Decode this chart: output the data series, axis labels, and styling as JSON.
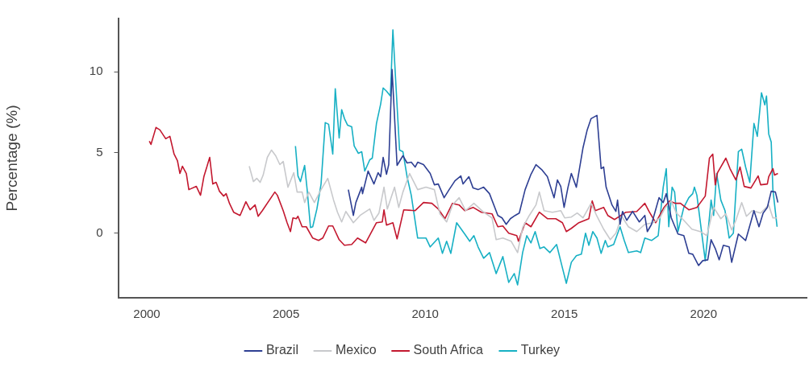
{
  "chart_data": {
    "type": "line",
    "ylabel": "Percentage (%)",
    "xlim": [
      1999,
      2023.7
    ],
    "ylim": [
      -4,
      13.3
    ],
    "xticks": [
      2000,
      2005,
      2010,
      2015,
      2020
    ],
    "yticks": [
      0,
      5,
      10
    ],
    "grid": false,
    "legend": "bottom",
    "series": [
      {
        "name": "Brazil",
        "color": "#2e3f93",
        "x": [
          2007.24,
          2007.42,
          2007.51,
          2007.72,
          2007.75,
          2007.95,
          2008.16,
          2008.31,
          2008.4,
          2008.49,
          2008.61,
          2008.69,
          2008.81,
          2008.99,
          2009.2,
          2009.35,
          2009.5,
          2009.64,
          2009.73,
          2009.94,
          2010.18,
          2010.33,
          2010.47,
          2010.68,
          2010.86,
          2011.07,
          2011.28,
          2011.36,
          2011.57,
          2011.72,
          2011.9,
          2012.1,
          2012.31,
          2012.61,
          2012.76,
          2012.91,
          2013.06,
          2013.23,
          2013.38,
          2013.59,
          2013.8,
          2013.98,
          2014.18,
          2014.39,
          2014.48,
          2014.63,
          2014.75,
          2014.87,
          2014.99,
          2015.13,
          2015.25,
          2015.43,
          2015.67,
          2015.82,
          2015.96,
          2016.17,
          2016.32,
          2016.41,
          2016.5,
          2016.71,
          2016.85,
          2016.91,
          2017.0,
          2017.09,
          2017.24,
          2017.45,
          2017.69,
          2017.89,
          2017.98,
          2018.13,
          2018.4,
          2018.55,
          2018.66,
          2018.84,
          2019.08,
          2019.29,
          2019.47,
          2019.61,
          2019.82,
          2019.97,
          2020.15,
          2020.27,
          2020.42,
          2020.56,
          2020.71,
          2020.92,
          2021.01,
          2021.25,
          2021.51,
          2021.69,
          2021.81,
          2021.99,
          2022.14,
          2022.29,
          2022.43,
          2022.58,
          2022.67
        ],
        "values": [
          2.7,
          1.1,
          1.9,
          2.85,
          2.45,
          3.85,
          3.05,
          3.75,
          3.5,
          4.7,
          3.65,
          4.25,
          10.15,
          4.2,
          4.8,
          4.35,
          4.4,
          4.1,
          4.4,
          4.25,
          3.7,
          3.0,
          3.05,
          2.2,
          2.7,
          3.25,
          3.55,
          3.05,
          3.5,
          2.8,
          2.7,
          2.85,
          2.45,
          1.1,
          0.95,
          0.55,
          0.9,
          1.1,
          1.25,
          2.7,
          3.65,
          4.25,
          3.95,
          3.5,
          3.0,
          2.2,
          3.3,
          2.9,
          1.6,
          2.85,
          3.7,
          2.85,
          5.3,
          6.4,
          7.1,
          7.3,
          4.0,
          4.1,
          2.85,
          1.75,
          1.35,
          2.05,
          0.55,
          1.35,
          0.8,
          1.35,
          0.7,
          1.1,
          0.1,
          0.55,
          2.2,
          1.9,
          2.45,
          0.95,
          -0.05,
          -0.15,
          -1.25,
          -1.3,
          -2.0,
          -1.7,
          -1.65,
          -0.4,
          -0.95,
          -1.65,
          -0.75,
          -0.85,
          -1.8,
          -0.05,
          -0.45,
          0.65,
          1.4,
          0.4,
          1.25,
          1.6,
          2.6,
          2.55,
          1.9
        ]
      },
      {
        "name": "Mexico",
        "color": "#c8c9cc",
        "x": [
          2003.68,
          2003.83,
          2003.95,
          2004.07,
          2004.18,
          2004.33,
          2004.48,
          2004.63,
          2004.78,
          2004.9,
          2005.07,
          2005.28,
          2005.4,
          2005.58,
          2005.67,
          2005.82,
          2006.02,
          2006.26,
          2006.5,
          2006.71,
          2006.85,
          2007.0,
          2007.15,
          2007.42,
          2007.66,
          2008.01,
          2008.16,
          2008.34,
          2008.52,
          2008.64,
          2008.9,
          2009.05,
          2009.2,
          2009.44,
          2009.73,
          2010.03,
          2010.33,
          2010.53,
          2010.77,
          2010.98,
          2011.22,
          2011.45,
          2011.75,
          2012.1,
          2012.4,
          2012.55,
          2012.79,
          2013.09,
          2013.32,
          2013.5,
          2013.74,
          2013.98,
          2014.1,
          2014.27,
          2014.57,
          2014.87,
          2015.01,
          2015.25,
          2015.46,
          2015.67,
          2015.96,
          2016.17,
          2016.41,
          2016.65,
          2016.85,
          2017.06,
          2017.3,
          2017.6,
          2017.89,
          2018.19,
          2018.43,
          2018.63,
          2018.84,
          2019.02,
          2019.29,
          2019.58,
          2019.88,
          2020.12,
          2020.36,
          2020.62,
          2020.8,
          2021.01,
          2021.16,
          2021.37,
          2021.54,
          2021.75,
          2022.05,
          2022.34,
          2022.49,
          2022.64
        ],
        "values": [
          4.15,
          3.2,
          3.4,
          3.15,
          3.6,
          4.7,
          5.15,
          4.8,
          4.25,
          4.45,
          2.85,
          3.75,
          2.55,
          2.55,
          1.9,
          2.55,
          1.9,
          2.7,
          3.4,
          2.05,
          1.3,
          0.7,
          1.35,
          0.65,
          1.1,
          1.5,
          0.8,
          1.25,
          2.85,
          1.5,
          2.85,
          1.6,
          2.55,
          3.7,
          2.7,
          2.85,
          2.7,
          1.2,
          0.7,
          1.75,
          2.2,
          1.4,
          1.85,
          1.3,
          0.95,
          -0.4,
          -0.3,
          -0.5,
          -1.2,
          0.35,
          1.1,
          1.75,
          2.55,
          1.4,
          1.3,
          1.4,
          0.95,
          1.0,
          1.25,
          0.95,
          1.85,
          1.05,
          0.25,
          -0.4,
          0.0,
          1.05,
          0.4,
          0.1,
          0.55,
          0.65,
          0.95,
          1.6,
          2.0,
          1.25,
          0.8,
          0.25,
          0.1,
          -0.15,
          1.6,
          0.9,
          1.2,
          0.2,
          0.8,
          1.9,
          1.05,
          1.4,
          1.25,
          1.75,
          0.95,
          0.95
        ]
      },
      {
        "name": "South Africa",
        "color": "#c3182f",
        "x": [
          2000.09,
          2000.15,
          2000.33,
          2000.47,
          2000.68,
          2000.83,
          2000.98,
          2001.1,
          2001.19,
          2001.28,
          2001.42,
          2001.51,
          2001.78,
          2001.93,
          2002.05,
          2002.26,
          2002.37,
          2002.49,
          2002.61,
          2002.76,
          2002.85,
          2002.97,
          2003.12,
          2003.35,
          2003.56,
          2003.71,
          2003.89,
          2004.0,
          2004.15,
          2004.6,
          2004.69,
          2004.9,
          2005.04,
          2005.16,
          2005.25,
          2005.37,
          2005.43,
          2005.58,
          2005.73,
          2005.96,
          2006.17,
          2006.32,
          2006.53,
          2006.68,
          2006.91,
          2007.1,
          2007.36,
          2007.57,
          2007.86,
          2008.25,
          2008.46,
          2008.52,
          2008.61,
          2008.84,
          2008.99,
          2009.23,
          2009.64,
          2009.94,
          2010.24,
          2010.47,
          2010.71,
          2010.98,
          2011.22,
          2011.42,
          2011.72,
          2012.02,
          2012.4,
          2012.61,
          2012.79,
          2013.0,
          2013.29,
          2013.35,
          2013.59,
          2013.8,
          2014.1,
          2014.39,
          2014.69,
          2014.93,
          2015.07,
          2015.25,
          2015.52,
          2015.88,
          2016.0,
          2016.11,
          2016.41,
          2016.56,
          2016.8,
          2017.21,
          2017.6,
          2017.89,
          2018.04,
          2018.28,
          2018.58,
          2018.78,
          2018.99,
          2019.17,
          2019.47,
          2019.76,
          2020.06,
          2020.21,
          2020.33,
          2020.42,
          2020.5,
          2020.8,
          2020.95,
          2021.16,
          2021.31,
          2021.46,
          2021.7,
          2021.96,
          2022.05,
          2022.29,
          2022.34,
          2022.49,
          2022.55,
          2022.67
        ],
        "values": [
          5.7,
          5.5,
          6.55,
          6.4,
          5.85,
          6.0,
          4.9,
          4.5,
          3.7,
          4.15,
          3.7,
          2.7,
          2.9,
          2.35,
          3.5,
          4.7,
          3.05,
          3.15,
          2.6,
          2.3,
          2.45,
          1.85,
          1.3,
          1.1,
          1.95,
          1.45,
          1.75,
          1.05,
          1.4,
          2.55,
          2.35,
          1.4,
          0.65,
          0.1,
          0.95,
          0.9,
          1.05,
          0.4,
          0.4,
          -0.3,
          -0.45,
          -0.3,
          0.45,
          0.45,
          -0.4,
          -0.75,
          -0.7,
          -0.3,
          -0.6,
          0.65,
          0.7,
          1.45,
          0.5,
          0.65,
          -0.35,
          1.45,
          1.4,
          1.9,
          1.85,
          1.5,
          0.9,
          1.85,
          1.75,
          1.4,
          1.6,
          1.3,
          1.2,
          0.4,
          0.45,
          0.0,
          -0.15,
          -0.5,
          0.65,
          0.4,
          1.3,
          0.9,
          0.9,
          0.65,
          0.1,
          0.3,
          0.65,
          0.9,
          2.0,
          1.4,
          1.6,
          1.1,
          0.85,
          1.3,
          1.35,
          1.85,
          1.35,
          0.65,
          1.6,
          2.0,
          1.85,
          1.85,
          1.45,
          1.6,
          2.3,
          4.65,
          4.9,
          3.0,
          3.75,
          4.65,
          4.0,
          3.3,
          4.1,
          2.9,
          2.8,
          3.55,
          3.0,
          3.05,
          3.5,
          4.0,
          3.6,
          3.7
        ]
      },
      {
        "name": "Turkey",
        "color": "#17b0c4",
        "x": [
          2005.34,
          2005.43,
          2005.52,
          2005.67,
          2005.76,
          2005.88,
          2005.96,
          2006.11,
          2006.26,
          2006.41,
          2006.53,
          2006.68,
          2006.77,
          2006.91,
          2007.0,
          2007.1,
          2007.21,
          2007.36,
          2007.45,
          2007.6,
          2007.72,
          2007.83,
          2008.01,
          2008.1,
          2008.25,
          2008.4,
          2008.49,
          2008.61,
          2008.75,
          2008.84,
          2008.99,
          2009.08,
          2009.2,
          2009.35,
          2009.5,
          2009.73,
          2010.03,
          2010.18,
          2010.47,
          2010.62,
          2010.77,
          2010.92,
          2011.13,
          2011.42,
          2011.6,
          2011.75,
          2011.9,
          2012.1,
          2012.31,
          2012.55,
          2012.79,
          2013.0,
          2013.2,
          2013.32,
          2013.5,
          2013.65,
          2013.8,
          2013.95,
          2014.12,
          2014.27,
          2014.48,
          2014.72,
          2014.93,
          2015.07,
          2015.25,
          2015.43,
          2015.61,
          2015.76,
          2015.88,
          2016.02,
          2016.17,
          2016.32,
          2016.47,
          2016.56,
          2016.77,
          2017.0,
          2017.15,
          2017.3,
          2017.6,
          2017.74,
          2017.89,
          2018.13,
          2018.37,
          2018.55,
          2018.66,
          2018.75,
          2018.87,
          2018.96,
          2019.08,
          2019.29,
          2019.47,
          2019.61,
          2019.67,
          2019.76,
          2020.06,
          2020.27,
          2020.36,
          2020.47,
          2020.62,
          2020.77,
          2020.92,
          2021.07,
          2021.25,
          2021.37,
          2021.51,
          2021.66,
          2021.81,
          2021.93,
          2022.08,
          2022.2,
          2022.26,
          2022.34,
          2022.43,
          2022.49,
          2022.64
        ],
        "values": [
          5.4,
          3.55,
          3.2,
          4.2,
          2.7,
          0.35,
          0.4,
          1.5,
          3.05,
          6.85,
          6.75,
          4.9,
          8.95,
          5.9,
          7.65,
          7.1,
          6.7,
          6.6,
          5.4,
          4.95,
          5.05,
          3.85,
          4.55,
          4.65,
          6.8,
          8.0,
          9.0,
          8.8,
          8.5,
          12.6,
          7.9,
          5.15,
          5.05,
          3.5,
          2.35,
          -0.3,
          -0.3,
          -0.85,
          -0.3,
          -1.25,
          -0.5,
          -1.25,
          0.65,
          -0.05,
          -0.5,
          -0.15,
          -0.85,
          -1.55,
          -1.2,
          -2.5,
          -1.45,
          -3.05,
          -2.5,
          -3.2,
          -1.2,
          -0.15,
          -0.6,
          0.1,
          -0.95,
          -0.85,
          -1.2,
          -0.7,
          -2.15,
          -3.1,
          -1.8,
          -1.4,
          -1.3,
          0.0,
          -0.75,
          0.1,
          -0.3,
          -1.25,
          -0.45,
          -0.85,
          -0.7,
          0.4,
          -0.45,
          -1.2,
          -1.1,
          -1.2,
          -0.3,
          -0.45,
          -0.15,
          2.85,
          4.0,
          0.4,
          2.85,
          2.55,
          0.1,
          1.6,
          2.2,
          2.45,
          2.85,
          2.35,
          -1.7,
          2.05,
          1.1,
          3.7,
          2.05,
          1.4,
          -0.3,
          0.0,
          5.05,
          5.2,
          4.1,
          3.15,
          6.8,
          6.0,
          8.7,
          7.95,
          8.5,
          6.15,
          5.65,
          2.7,
          0.4
        ]
      }
    ]
  }
}
